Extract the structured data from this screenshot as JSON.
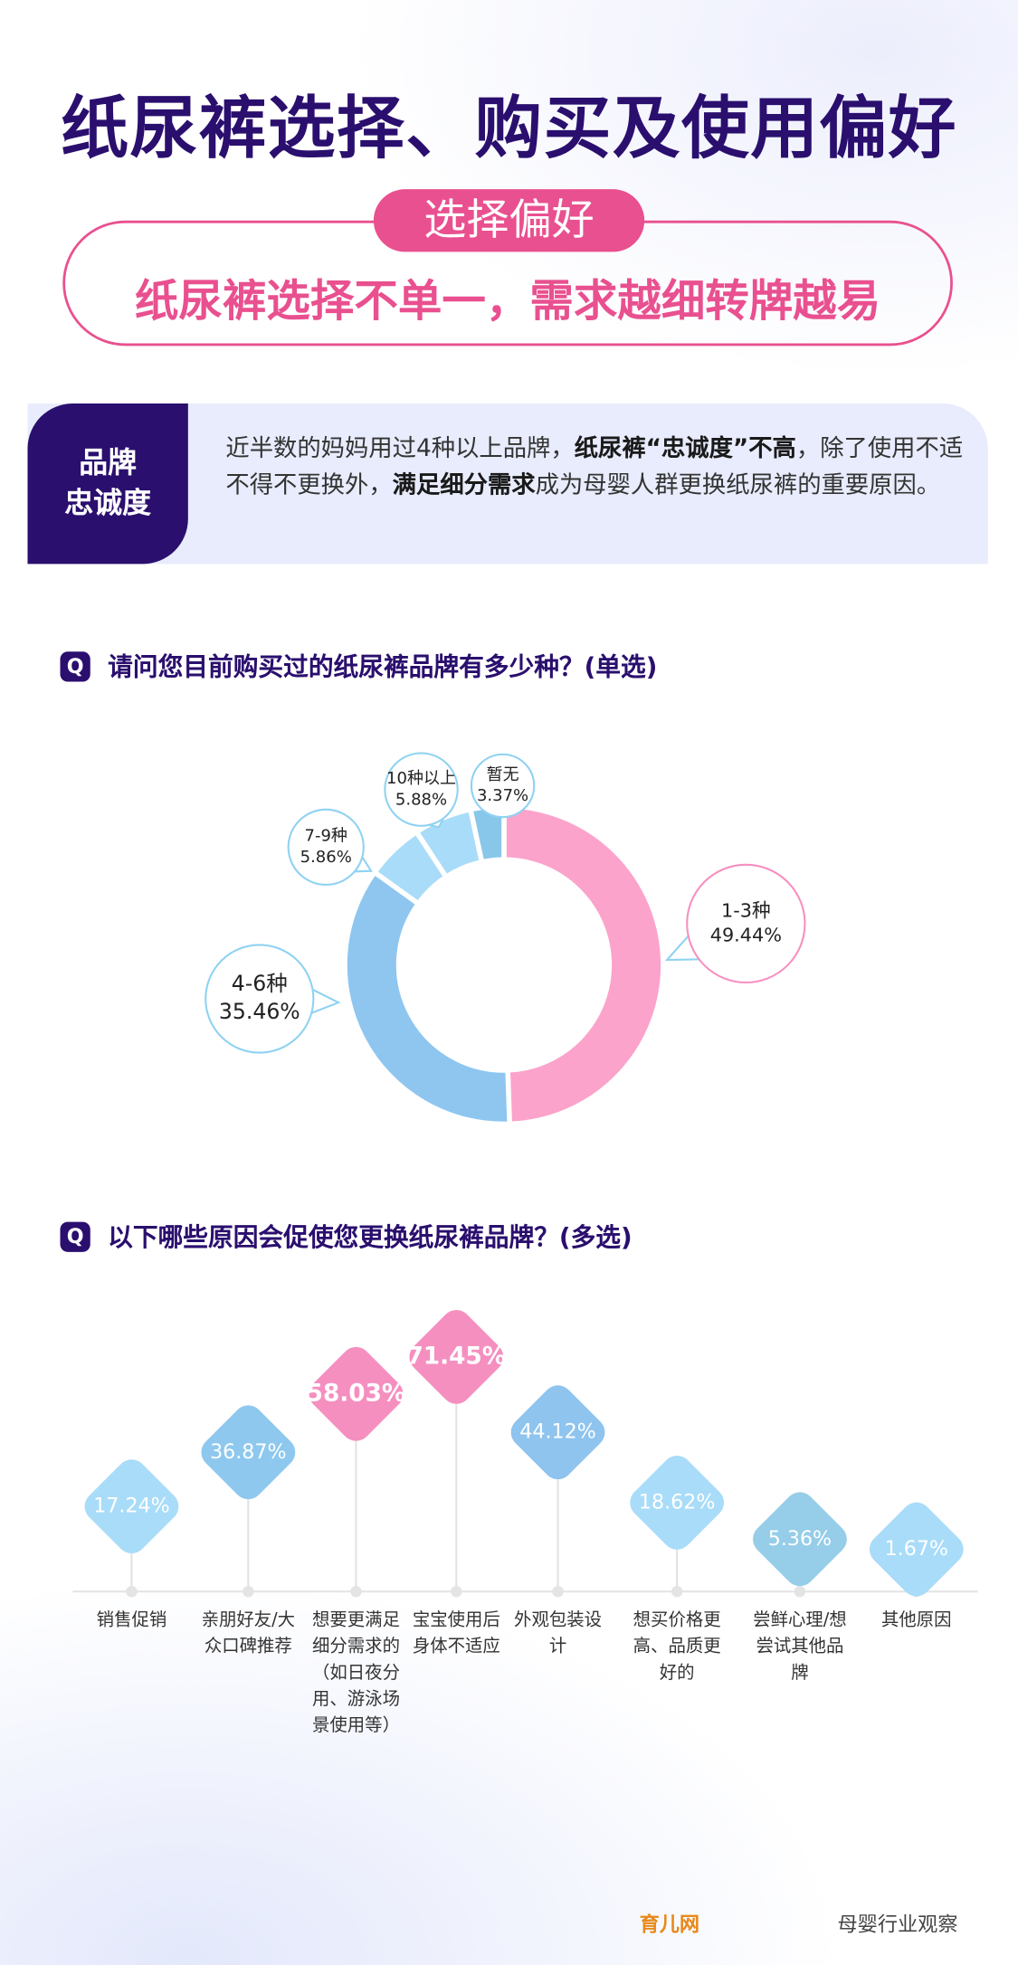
{
  "title": "纸尿裤选择、购买及使用偏好",
  "section": {
    "pill": "选择偏好",
    "subtitle": "纸尿裤选择不单一，需求越细转牌越易"
  },
  "intro": {
    "label": [
      "品牌",
      "忠诚度"
    ],
    "text": [
      "近半数的妈妈用过4种以上品牌，",
      "纸尿裤“忠诚度”不高",
      "，除了使用不适不得不更换外，",
      "满足细分需求",
      "成为母婴人群更换纸尿裤的重要原因。"
    ]
  },
  "q_icon": "Q",
  "chart_data": [
    {
      "type": "donut",
      "title": "请问您目前购买过的纸尿裤品牌有多少种？(单选)",
      "categories": [
        "1-3种",
        "4-6种",
        "7-9种",
        "10种以上",
        "暂无"
      ],
      "values": [
        49.44,
        35.46,
        5.86,
        5.88,
        3.37
      ],
      "value_labels": [
        "49.44%",
        "35.46%",
        "5.86%",
        "5.88%",
        "3.37%"
      ],
      "colors": [
        "#fba3cb",
        "#8ec6f0",
        "#a9dcf8",
        "#a9dcf8",
        "#88c7ea"
      ]
    },
    {
      "type": "lollipop",
      "title": "以下哪些原因会促使您更换纸尿裤品牌？(多选)",
      "categories": [
        "销售促销",
        "亲朋好友/大众口碑推荐",
        "想要更满足细分需求的（如日夜分用、游泳场景使用等）",
        "宝宝使用后身体不适应",
        "外观包装设计",
        "想买价格更高、品质更好的",
        "尝鲜心理/想尝试其他品牌",
        "其他原因"
      ],
      "values": [
        17.24,
        36.87,
        58.03,
        71.45,
        44.12,
        18.62,
        5.36,
        1.67
      ],
      "value_labels": [
        "17.24%",
        "36.87%",
        "58.03%",
        "71.45%",
        "44.12%",
        "18.62%",
        "5.36%",
        "1.67%"
      ],
      "colors": [
        "#a9dcf8",
        "#8ec8ee",
        "#f58fc0",
        "#f58fc0",
        "#8ec4ee",
        "#a9dcf8",
        "#96cde9",
        "#a9dcf8"
      ]
    }
  ],
  "footer": [
    "育儿网",
    "母婴行业观察"
  ]
}
